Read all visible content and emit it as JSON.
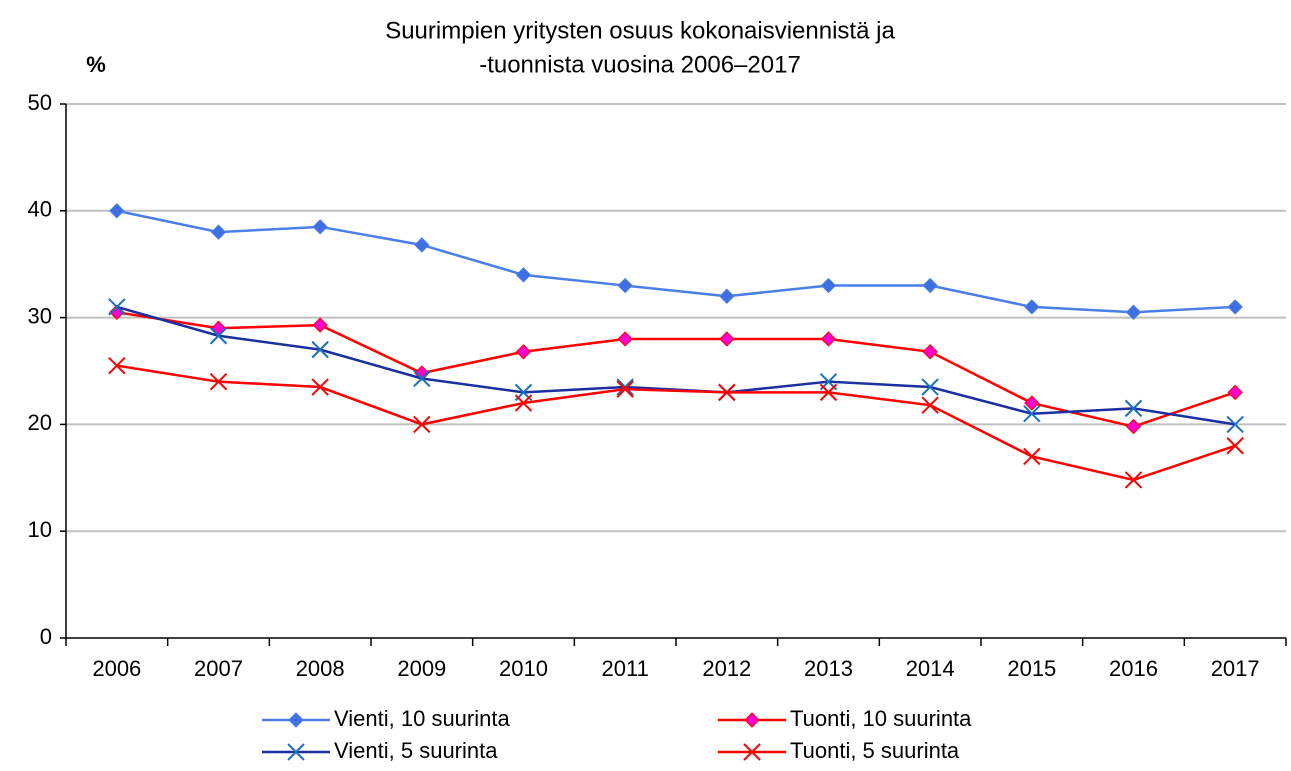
{
  "chart_data": {
    "type": "line",
    "title": [
      "Suurimpien yritysten osuus kokonaisviennistä ja",
      "-tuonnista vuosina 2006–2017"
    ],
    "ylabel": "%",
    "categories": [
      "2006",
      "2007",
      "2008",
      "2009",
      "2010",
      "2011",
      "2012",
      "2013",
      "2014",
      "2015",
      "2016",
      "2017"
    ],
    "series": [
      {
        "name": "Vienti, 10 suurinta",
        "color": "#4a7ee8",
        "marker": "diamond",
        "marker_color": "#3f6fe0",
        "values": [
          40,
          38,
          38.5,
          36.8,
          34,
          33,
          32,
          33,
          33,
          31,
          30.5,
          31
        ]
      },
      {
        "name": "Tuonti, 10 suurinta",
        "color": "#ff0000",
        "marker": "diamond",
        "marker_color": "#ff00cc",
        "values": [
          30.5,
          29,
          29.3,
          24.8,
          26.8,
          28,
          28,
          28,
          26.8,
          22,
          19.8,
          23
        ]
      },
      {
        "name": "Vienti, 5 suurinta",
        "color": "#1a2fa0",
        "marker": "x",
        "marker_color": "#1a6fc0",
        "values": [
          31,
          28.3,
          27,
          24.3,
          23,
          23.5,
          23,
          24,
          23.5,
          21,
          21.5,
          20
        ]
      },
      {
        "name": "Tuonti, 5 suurinta",
        "color": "#ff0000",
        "marker": "x",
        "marker_color": "#ff0000",
        "values": [
          25.5,
          24,
          23.5,
          20,
          22,
          23.3,
          23,
          23,
          21.8,
          17,
          14.8,
          18
        ]
      }
    ],
    "ylim": [
      0,
      50
    ],
    "yticks": [
      0,
      10,
      20,
      30,
      40,
      50
    ],
    "grid": true
  }
}
